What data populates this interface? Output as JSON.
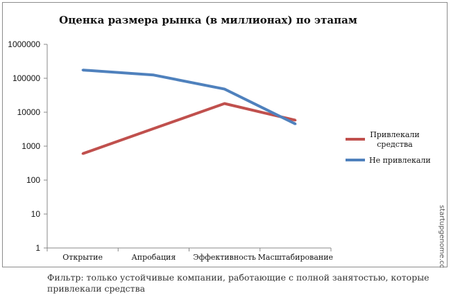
{
  "chart_data": {
    "type": "line",
    "title": "Оценка размера рынка (в миллионах) по этапам",
    "categories": [
      "Открытие",
      "Апробация",
      "Эффективность",
      "Масштабирование"
    ],
    "y_scale": "log",
    "ylim": [
      1,
      1000000
    ],
    "y_ticks": [
      {
        "value": 1,
        "label": "1"
      },
      {
        "value": 10,
        "label": "10"
      },
      {
        "value": 100,
        "label": "100"
      },
      {
        "value": 1000,
        "label": "1000"
      },
      {
        "value": 10000,
        "label": "10000"
      },
      {
        "value": 100000,
        "label": "100000"
      },
      {
        "value": 1000000,
        "label": "1000000"
      }
    ],
    "grid": false,
    "legend_position": "right",
    "series": [
      {
        "name": "Привлекали средства",
        "name_lines": [
          "Привлекали",
          "средства"
        ],
        "color": "#c0504d",
        "values": [
          600,
          3300,
          18000,
          5800
        ]
      },
      {
        "name": "Не привлекали",
        "name_lines": [
          "Не привлекали"
        ],
        "color": "#4f81bd",
        "values": [
          175000,
          125000,
          48000,
          4500
        ]
      }
    ]
  },
  "watermark": "startupgenome.cc",
  "footnote": "Фильтр: только устойчивые компании, работающие с полной занятостью, которые привлекали средства"
}
